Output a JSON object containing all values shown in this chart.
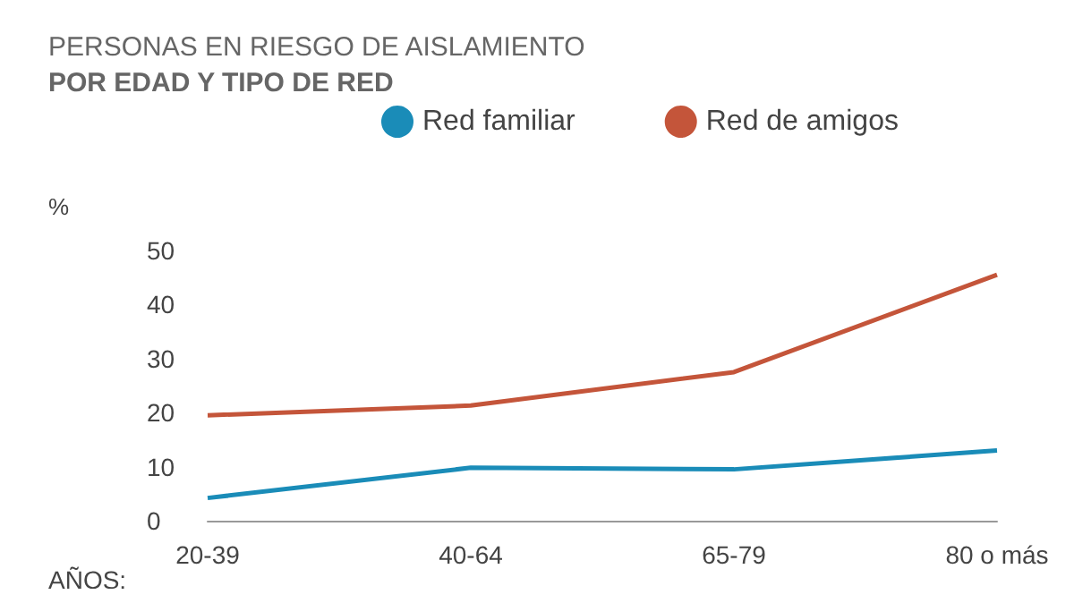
{
  "chart_data": {
    "type": "line",
    "title": "PERSONAS EN RIESGO DE AISLAMIENTO",
    "subtitle": "POR EDAD Y TIPO DE RED",
    "ylabel": "%",
    "xlabel": "AÑOS:",
    "categories": [
      "20-39",
      "40-64",
      "65-79",
      "80 o más"
    ],
    "series": [
      {
        "name": "Red familiar",
        "color": "#1a8cb8",
        "values": [
          4.2,
          9.8,
          9.5,
          13
        ]
      },
      {
        "name": "Red de amigos",
        "color": "#c4553a",
        "values": [
          19.5,
          21.3,
          27.5,
          45.5
        ]
      }
    ],
    "ylim": [
      0,
      50
    ],
    "yticks": [
      0,
      10,
      20,
      30,
      40,
      50
    ],
    "grid": false,
    "legend": "top",
    "marker": "none",
    "line_style": "solid"
  }
}
